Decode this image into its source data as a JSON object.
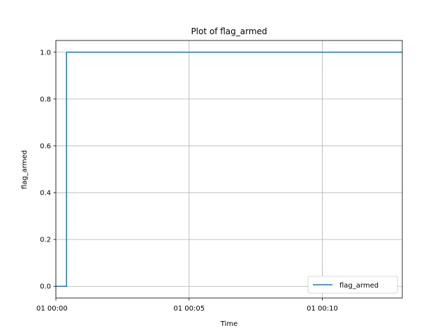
{
  "chart_data": {
    "type": "line",
    "title": "Plot of flag_armed",
    "xlabel": "Time",
    "ylabel": "flag_armed",
    "x_ticks": [
      "01 00:00",
      "01 00:05",
      "01 00:10"
    ],
    "x_tick_minutes": [
      0,
      5,
      10
    ],
    "y_ticks": [
      "0.0",
      "0.2",
      "0.4",
      "0.6",
      "0.8",
      "1.0"
    ],
    "y_tick_values": [
      0.0,
      0.2,
      0.4,
      0.6,
      0.8,
      1.0
    ],
    "xlim_minutes": [
      0,
      13.0
    ],
    "ylim": [
      -0.05,
      1.05
    ],
    "grid": true,
    "legend_position": "lower-right",
    "series": [
      {
        "name": "flag_armed",
        "color": "#1f77b4",
        "step": true,
        "x_minutes": [
          0,
          0.4,
          13.0
        ],
        "values": [
          0,
          1,
          1
        ]
      }
    ]
  }
}
